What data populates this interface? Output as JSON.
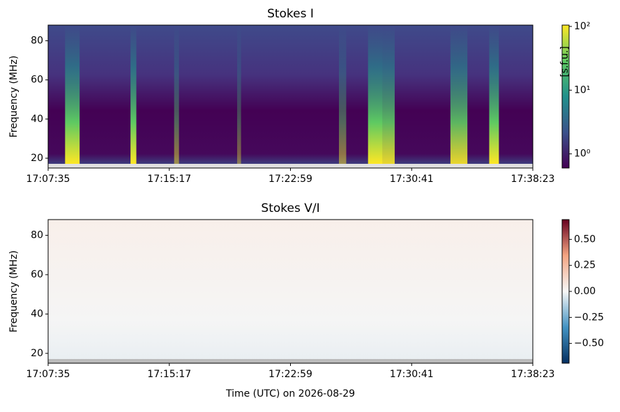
{
  "chart_data": [
    {
      "type": "heatmap",
      "title": "Stokes I",
      "ylabel": "Frequency (MHz)",
      "ylim": [
        15,
        88
      ],
      "yticks": [
        20,
        40,
        60,
        80
      ],
      "xticks": [
        "17:07:35",
        "17:15:17",
        "17:22:59",
        "17:30:41",
        "17:38:23"
      ],
      "colormap": "viridis",
      "color_scale": "log",
      "clim": [
        0.6,
        105
      ],
      "cticks": [
        {
          "value": 1,
          "label": "10⁰"
        },
        {
          "value": 10,
          "label": "10¹"
        },
        {
          "value": 100,
          "label": "10²"
        }
      ],
      "clabel": "[s.f.u.]"
    },
    {
      "type": "heatmap",
      "title": "Stokes V/I",
      "ylabel": "Frequency (MHz)",
      "xlabel": "Time (UTC) on 2026-08-29",
      "ylim": [
        15,
        88
      ],
      "yticks": [
        20,
        40,
        60,
        80
      ],
      "xticks": [
        "17:07:35",
        "17:15:17",
        "17:22:59",
        "17:30:41",
        "17:38:23"
      ],
      "colormap": "RdBu_r",
      "color_scale": "linear",
      "clim": [
        -0.69,
        0.69
      ],
      "cticks": [
        {
          "value": -0.5,
          "label": "−0.50"
        },
        {
          "value": -0.25,
          "label": "−0.25"
        },
        {
          "value": 0,
          "label": "0.00"
        },
        {
          "value": 0.25,
          "label": "0.25"
        },
        {
          "value": 0.5,
          "label": "0.50"
        }
      ]
    }
  ]
}
